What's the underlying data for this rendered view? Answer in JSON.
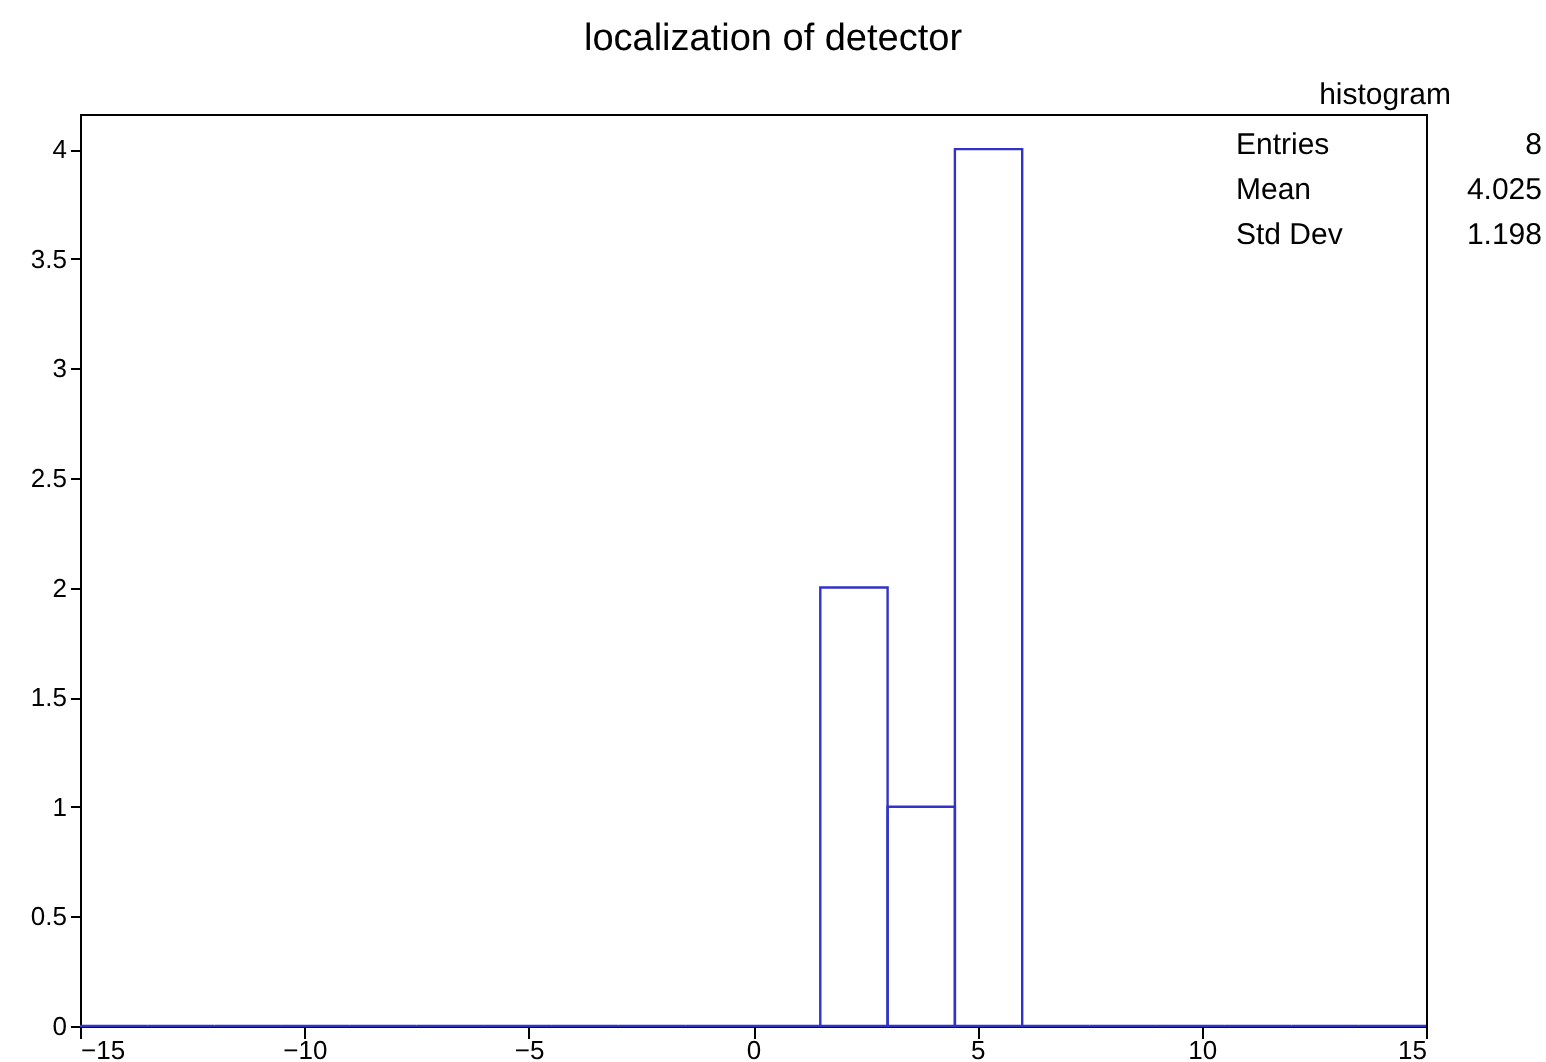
{
  "chart_data": {
    "type": "histogram",
    "title": "localization of detector",
    "bins": [
      -15,
      -13.5,
      -12,
      -10.5,
      -9,
      -7.5,
      -6,
      -4.5,
      -3,
      -1.5,
      0,
      1.5,
      3,
      4.5,
      6,
      7.5,
      9,
      10.5,
      12,
      13.5,
      15
    ],
    "values": [
      0,
      0,
      0,
      0,
      0,
      0,
      0,
      0,
      0,
      0,
      0,
      2,
      1,
      4,
      0,
      0,
      0,
      0,
      0,
      0
    ],
    "color": "#3232c8",
    "xlim": [
      -15,
      15
    ],
    "xticks": [
      -15,
      -10,
      -5,
      0,
      5,
      10,
      15
    ],
    "ylim": [
      0,
      4.16
    ],
    "yticks": [
      0,
      0.5,
      1,
      1.5,
      2,
      2.5,
      3,
      3.5,
      4
    ],
    "grid": false,
    "annotations": [
      "histogram",
      "Entries",
      "8",
      "Mean",
      "4.025",
      "Std Dev",
      "1.198"
    ]
  }
}
